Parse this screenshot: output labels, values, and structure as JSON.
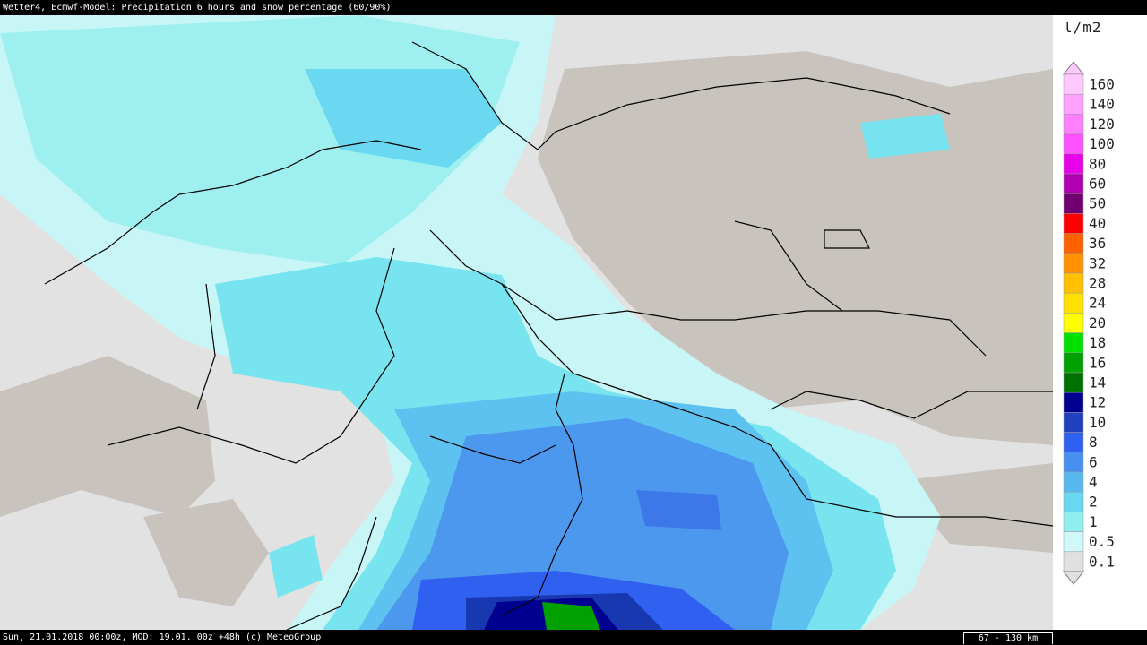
{
  "header": {
    "title": "Wetter4, Ecmwf-Model: Precipitation 6 hours and snow percentage (60/90%)"
  },
  "footer": {
    "info": "Sun, 21.01.2018 00:00z, MOD: 19.01. 00z +48h (c) MeteoGroup",
    "scale": "67 - 130 km"
  },
  "legend": {
    "unit": "l/m2",
    "items": [
      {
        "label": "160",
        "color": "#ffc8ff"
      },
      {
        "label": "140",
        "color": "#ffa0ff"
      },
      {
        "label": "120",
        "color": "#ff80ff"
      },
      {
        "label": "100",
        "color": "#ff50ff"
      },
      {
        "label": "80",
        "color": "#e800e8"
      },
      {
        "label": "60",
        "color": "#b000b0"
      },
      {
        "label": "50",
        "color": "#700070"
      },
      {
        "label": "40",
        "color": "#ff0000"
      },
      {
        "label": "36",
        "color": "#ff6000"
      },
      {
        "label": "32",
        "color": "#ff9000"
      },
      {
        "label": "28",
        "color": "#ffc000"
      },
      {
        "label": "24",
        "color": "#ffe000"
      },
      {
        "label": "20",
        "color": "#ffff00"
      },
      {
        "label": "18",
        "color": "#00e000"
      },
      {
        "label": "16",
        "color": "#00a000"
      },
      {
        "label": "14",
        "color": "#007000"
      },
      {
        "label": "12",
        "color": "#000090"
      },
      {
        "label": "10",
        "color": "#2040c0"
      },
      {
        "label": "8",
        "color": "#3060f0"
      },
      {
        "label": "6",
        "color": "#4890f0"
      },
      {
        "label": "4",
        "color": "#58b8f0"
      },
      {
        "label": "2",
        "color": "#68d8f0"
      },
      {
        "label": "1",
        "color": "#90f0f0"
      },
      {
        "label": "0.5",
        "color": "#d0f8f8"
      },
      {
        "label": "0.1",
        "color": "#e0e0e0"
      }
    ]
  }
}
